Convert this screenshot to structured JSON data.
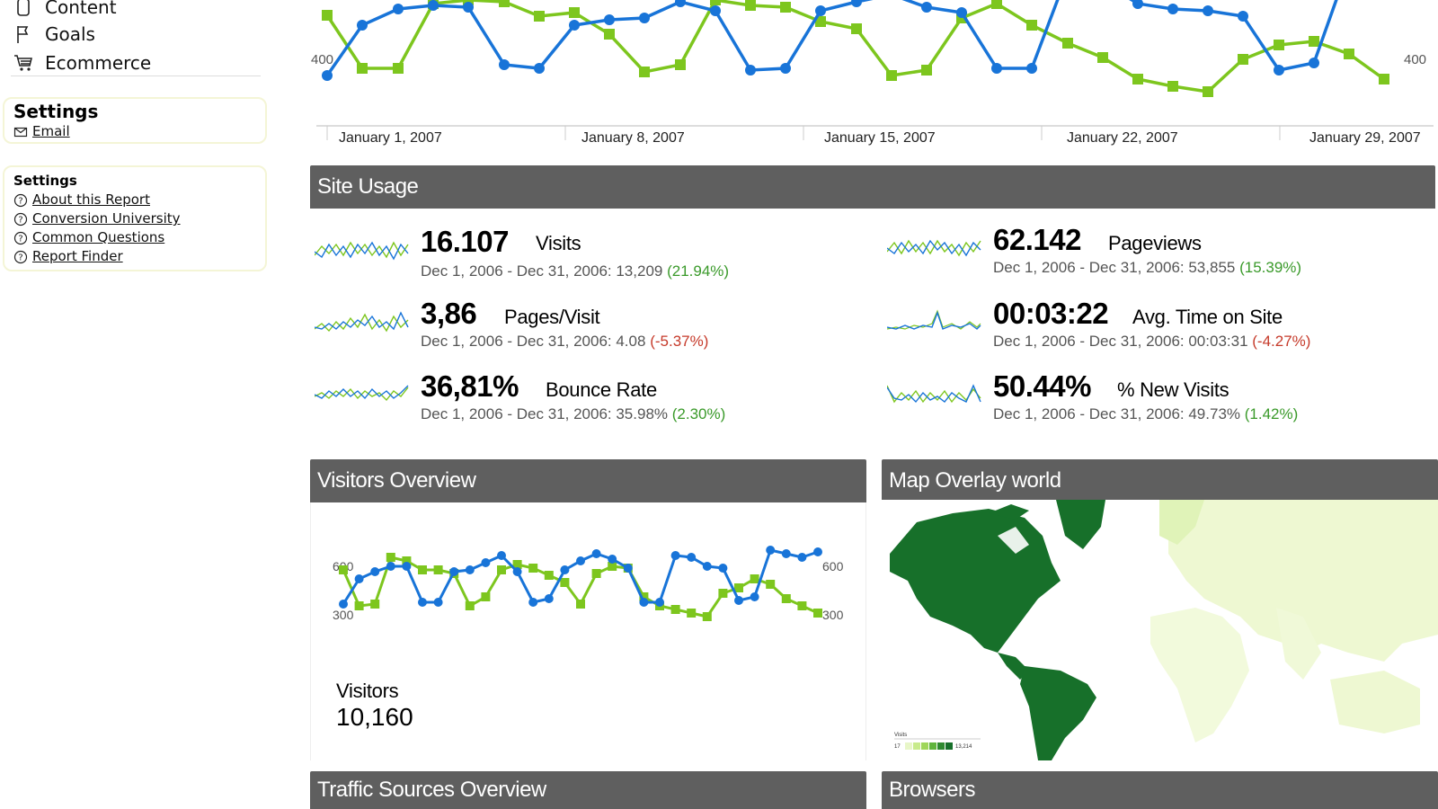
{
  "sidebar": {
    "nav": [
      {
        "label": "Content",
        "icon": "document-icon"
      },
      {
        "label": "Goals",
        "icon": "flag-icon"
      },
      {
        "label": "Ecommerce",
        "icon": "cart-icon"
      }
    ],
    "settings_box": {
      "title": "Settings",
      "link": "Email",
      "link_icon": "envelope-icon"
    },
    "help_box": {
      "title": "Settings",
      "links": [
        "About this Report",
        "Conversion University",
        "Common Questions",
        "Report Finder"
      ],
      "link_icon": "help-circle-icon"
    }
  },
  "colors": {
    "blue": "#1874d8",
    "green": "#7dc61e",
    "header_bg": "#5f5f5f",
    "map_dark": "#17702a",
    "map_light": "#e8f6c8"
  },
  "top_chart": {
    "type": "line",
    "y_tick_left": "400",
    "y_tick_right": "400",
    "x_ticks": [
      "January 1, 2007",
      "January 8, 2007",
      "January 15, 2007",
      "January 22, 2007",
      "January 29, 2007"
    ]
  },
  "site_usage": {
    "title": "Site Usage",
    "metrics": [
      {
        "value": "16.107",
        "label": "Visits",
        "compare": "Dec 1, 2006 - Dec 31, 2006: 13,209",
        "change": "(21.94%)",
        "trend": "pos"
      },
      {
        "value": "62.142",
        "label": "Pageviews",
        "compare": "Dec 1, 2006 - Dec 31, 2006: 53,855",
        "change": "(15.39%)",
        "trend": "pos"
      },
      {
        "value": "3,86",
        "label": "Pages/Visit",
        "compare": "Dec 1, 2006 - Dec 31, 2006: 4.08",
        "change": "(-5.37%)",
        "trend": "neg"
      },
      {
        "value": "00:03:22",
        "label": "Avg. Time on Site",
        "compare": "Dec 1, 2006 - Dec 31, 2006: 00:03:31",
        "change": "(-4.27%)",
        "trend": "neg"
      },
      {
        "value": "36,81%",
        "label": "Bounce Rate",
        "compare": "Dec 1, 2006 - Dec 31, 2006: 35.98%",
        "change": "(2.30%)",
        "trend": "pos"
      },
      {
        "value": "50.44%",
        "label": "% New Visits",
        "compare": "Dec 1, 2006 - Dec 31, 2006: 49.73%",
        "change": "(1.42%)",
        "trend": "pos"
      }
    ]
  },
  "visitors_overview": {
    "title": "Visitors Overview",
    "y_ticks_left": [
      "600",
      "300"
    ],
    "y_ticks_right": [
      "600",
      "300"
    ],
    "label": "Visitors",
    "value": "10,160"
  },
  "map_overlay": {
    "title": "Map Overlay world",
    "legend_label": "Visits",
    "legend_min": "17",
    "legend_max": "13,214"
  },
  "traffic_sources": {
    "title": "Traffic Sources Overview"
  },
  "browsers": {
    "title": "Browsers"
  }
}
